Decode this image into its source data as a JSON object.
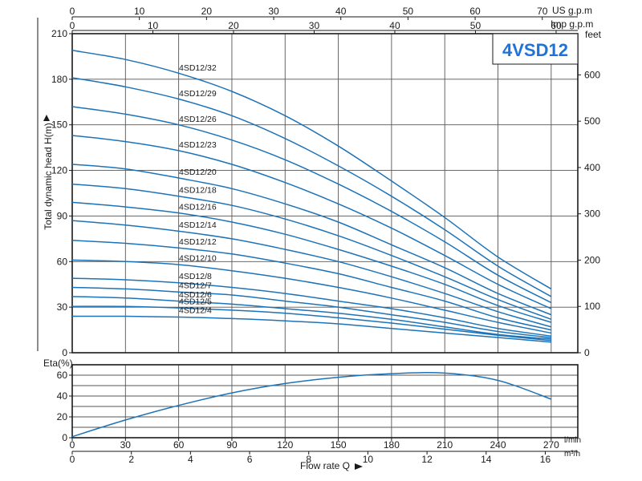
{
  "chart_data": {
    "type": "line",
    "title": "4VSD12",
    "title_color": "#1e73d8",
    "curve_color": "#1d73b8",
    "head_chart": {
      "ylabel": "Total dynamic head H(m)",
      "ylim": [
        0,
        210
      ],
      "yticks": [
        0,
        30,
        60,
        90,
        120,
        150,
        180,
        210
      ],
      "right_axis_label": "feet",
      "right_ticks": [
        0,
        100,
        200,
        300,
        400,
        500,
        600
      ],
      "top_axes": [
        {
          "label": "US g.p.m",
          "ticks": [
            0,
            10,
            20,
            30,
            40,
            50,
            60,
            70
          ]
        },
        {
          "label": "Imp g.p.m",
          "ticks": [
            0,
            10,
            20,
            30,
            40,
            50,
            60
          ]
        }
      ],
      "grid": true,
      "series": [
        {
          "name": "4SD12/32",
          "x": [
            0,
            30,
            60,
            90,
            120,
            150,
            180,
            210,
            240,
            270
          ],
          "values": [
            199,
            193,
            184,
            172,
            156,
            136,
            113,
            89,
            63,
            42
          ]
        },
        {
          "name": "4SD12/29",
          "x": [
            0,
            30,
            60,
            90,
            120,
            150,
            180,
            210,
            240,
            270
          ],
          "values": [
            181,
            175,
            167,
            156,
            141,
            123,
            103,
            81,
            57,
            37
          ]
        },
        {
          "name": "4SD12/26",
          "x": [
            0,
            30,
            60,
            90,
            120,
            150,
            180,
            210,
            240,
            270
          ],
          "values": [
            162,
            157,
            150,
            140,
            127,
            111,
            93,
            73,
            51,
            33
          ]
        },
        {
          "name": "4SD12/23",
          "x": [
            0,
            30,
            60,
            90,
            120,
            150,
            180,
            210,
            240,
            270
          ],
          "values": [
            143,
            139,
            133,
            124,
            112,
            98,
            82,
            64,
            45,
            29
          ]
        },
        {
          "name": "4SD12/20",
          "x": [
            0,
            30,
            60,
            90,
            120,
            150,
            180,
            210,
            240,
            270
          ],
          "values": [
            124,
            121,
            115,
            108,
            98,
            86,
            71,
            56,
            39,
            25
          ]
        },
        {
          "name": "4SD12/18",
          "x": [
            0,
            30,
            60,
            90,
            120,
            150,
            180,
            210,
            240,
            270
          ],
          "values": [
            111,
            108,
            103,
            97,
            88,
            77,
            64,
            50,
            35,
            22
          ]
        },
        {
          "name": "4SD12/16",
          "x": [
            0,
            30,
            60,
            90,
            120,
            150,
            180,
            210,
            240,
            270
          ],
          "values": [
            99,
            96,
            92,
            86,
            78,
            68,
            57,
            45,
            31,
            20
          ]
        },
        {
          "name": "4SD12/14",
          "x": [
            0,
            30,
            60,
            90,
            120,
            150,
            180,
            210,
            240,
            270
          ],
          "values": [
            87,
            84,
            80,
            75,
            68,
            60,
            50,
            39,
            27,
            17
          ]
        },
        {
          "name": "4SD12/12",
          "x": [
            0,
            30,
            60,
            90,
            120,
            150,
            180,
            210,
            240,
            270
          ],
          "values": [
            74,
            72,
            69,
            65,
            59,
            52,
            43,
            34,
            23,
            15
          ]
        },
        {
          "name": "4SD12/10",
          "x": [
            0,
            30,
            60,
            90,
            120,
            150,
            180,
            210,
            240,
            270
          ],
          "values": [
            61,
            60,
            58,
            54,
            49,
            43,
            36,
            28,
            20,
            13
          ]
        },
        {
          "name": "4SD12/8",
          "x": [
            0,
            30,
            60,
            90,
            120,
            150,
            180,
            210,
            240,
            270
          ],
          "values": [
            49,
            48,
            46,
            43,
            39,
            34,
            29,
            23,
            16,
            11
          ]
        },
        {
          "name": "4SD12/7",
          "x": [
            0,
            30,
            60,
            90,
            120,
            150,
            180,
            210,
            240,
            270
          ],
          "values": [
            43,
            42,
            40,
            38,
            34,
            30,
            25,
            20,
            14,
            10
          ]
        },
        {
          "name": "4SD12/6",
          "x": [
            0,
            30,
            60,
            90,
            120,
            150,
            180,
            210,
            240,
            270
          ],
          "values": [
            37,
            36,
            34,
            32,
            29,
            26,
            22,
            17,
            12,
            9
          ]
        },
        {
          "name": "4SD12/5",
          "x": [
            0,
            30,
            60,
            90,
            120,
            150,
            180,
            210,
            240,
            270
          ],
          "values": [
            30.5,
            30.5,
            29.5,
            28,
            26,
            23,
            19.5,
            15.5,
            11.5,
            8
          ]
        },
        {
          "name": "4SD12/4",
          "x": [
            0,
            30,
            60,
            90,
            120,
            150,
            180,
            210,
            240,
            270
          ],
          "values": [
            24,
            24,
            23.5,
            22.5,
            21,
            19,
            16,
            13,
            10,
            7
          ]
        }
      ]
    },
    "efficiency_chart": {
      "ylabel": "Eta(%)",
      "ylim": [
        0,
        70
      ],
      "yticks": [
        0,
        20,
        40,
        60
      ],
      "ytick_values": [
        0,
        10,
        20,
        30,
        40,
        50,
        60
      ],
      "x": [
        0,
        30,
        60,
        90,
        120,
        150,
        180,
        210,
        240,
        270
      ],
      "values": [
        1,
        17,
        31,
        43,
        52,
        58,
        61.5,
        62,
        55,
        37
      ]
    },
    "x_axes": {
      "primary": {
        "unit": "l/min",
        "ticks": [
          0,
          30,
          60,
          90,
          120,
          150,
          180,
          210,
          240,
          270
        ],
        "xlim": [
          0,
          270
        ]
      },
      "secondary": {
        "unit": "m³/h",
        "ticks": [
          0,
          2,
          4,
          6,
          8,
          10,
          12,
          14,
          16
        ]
      },
      "xlabel": "Flow rate Q"
    }
  }
}
